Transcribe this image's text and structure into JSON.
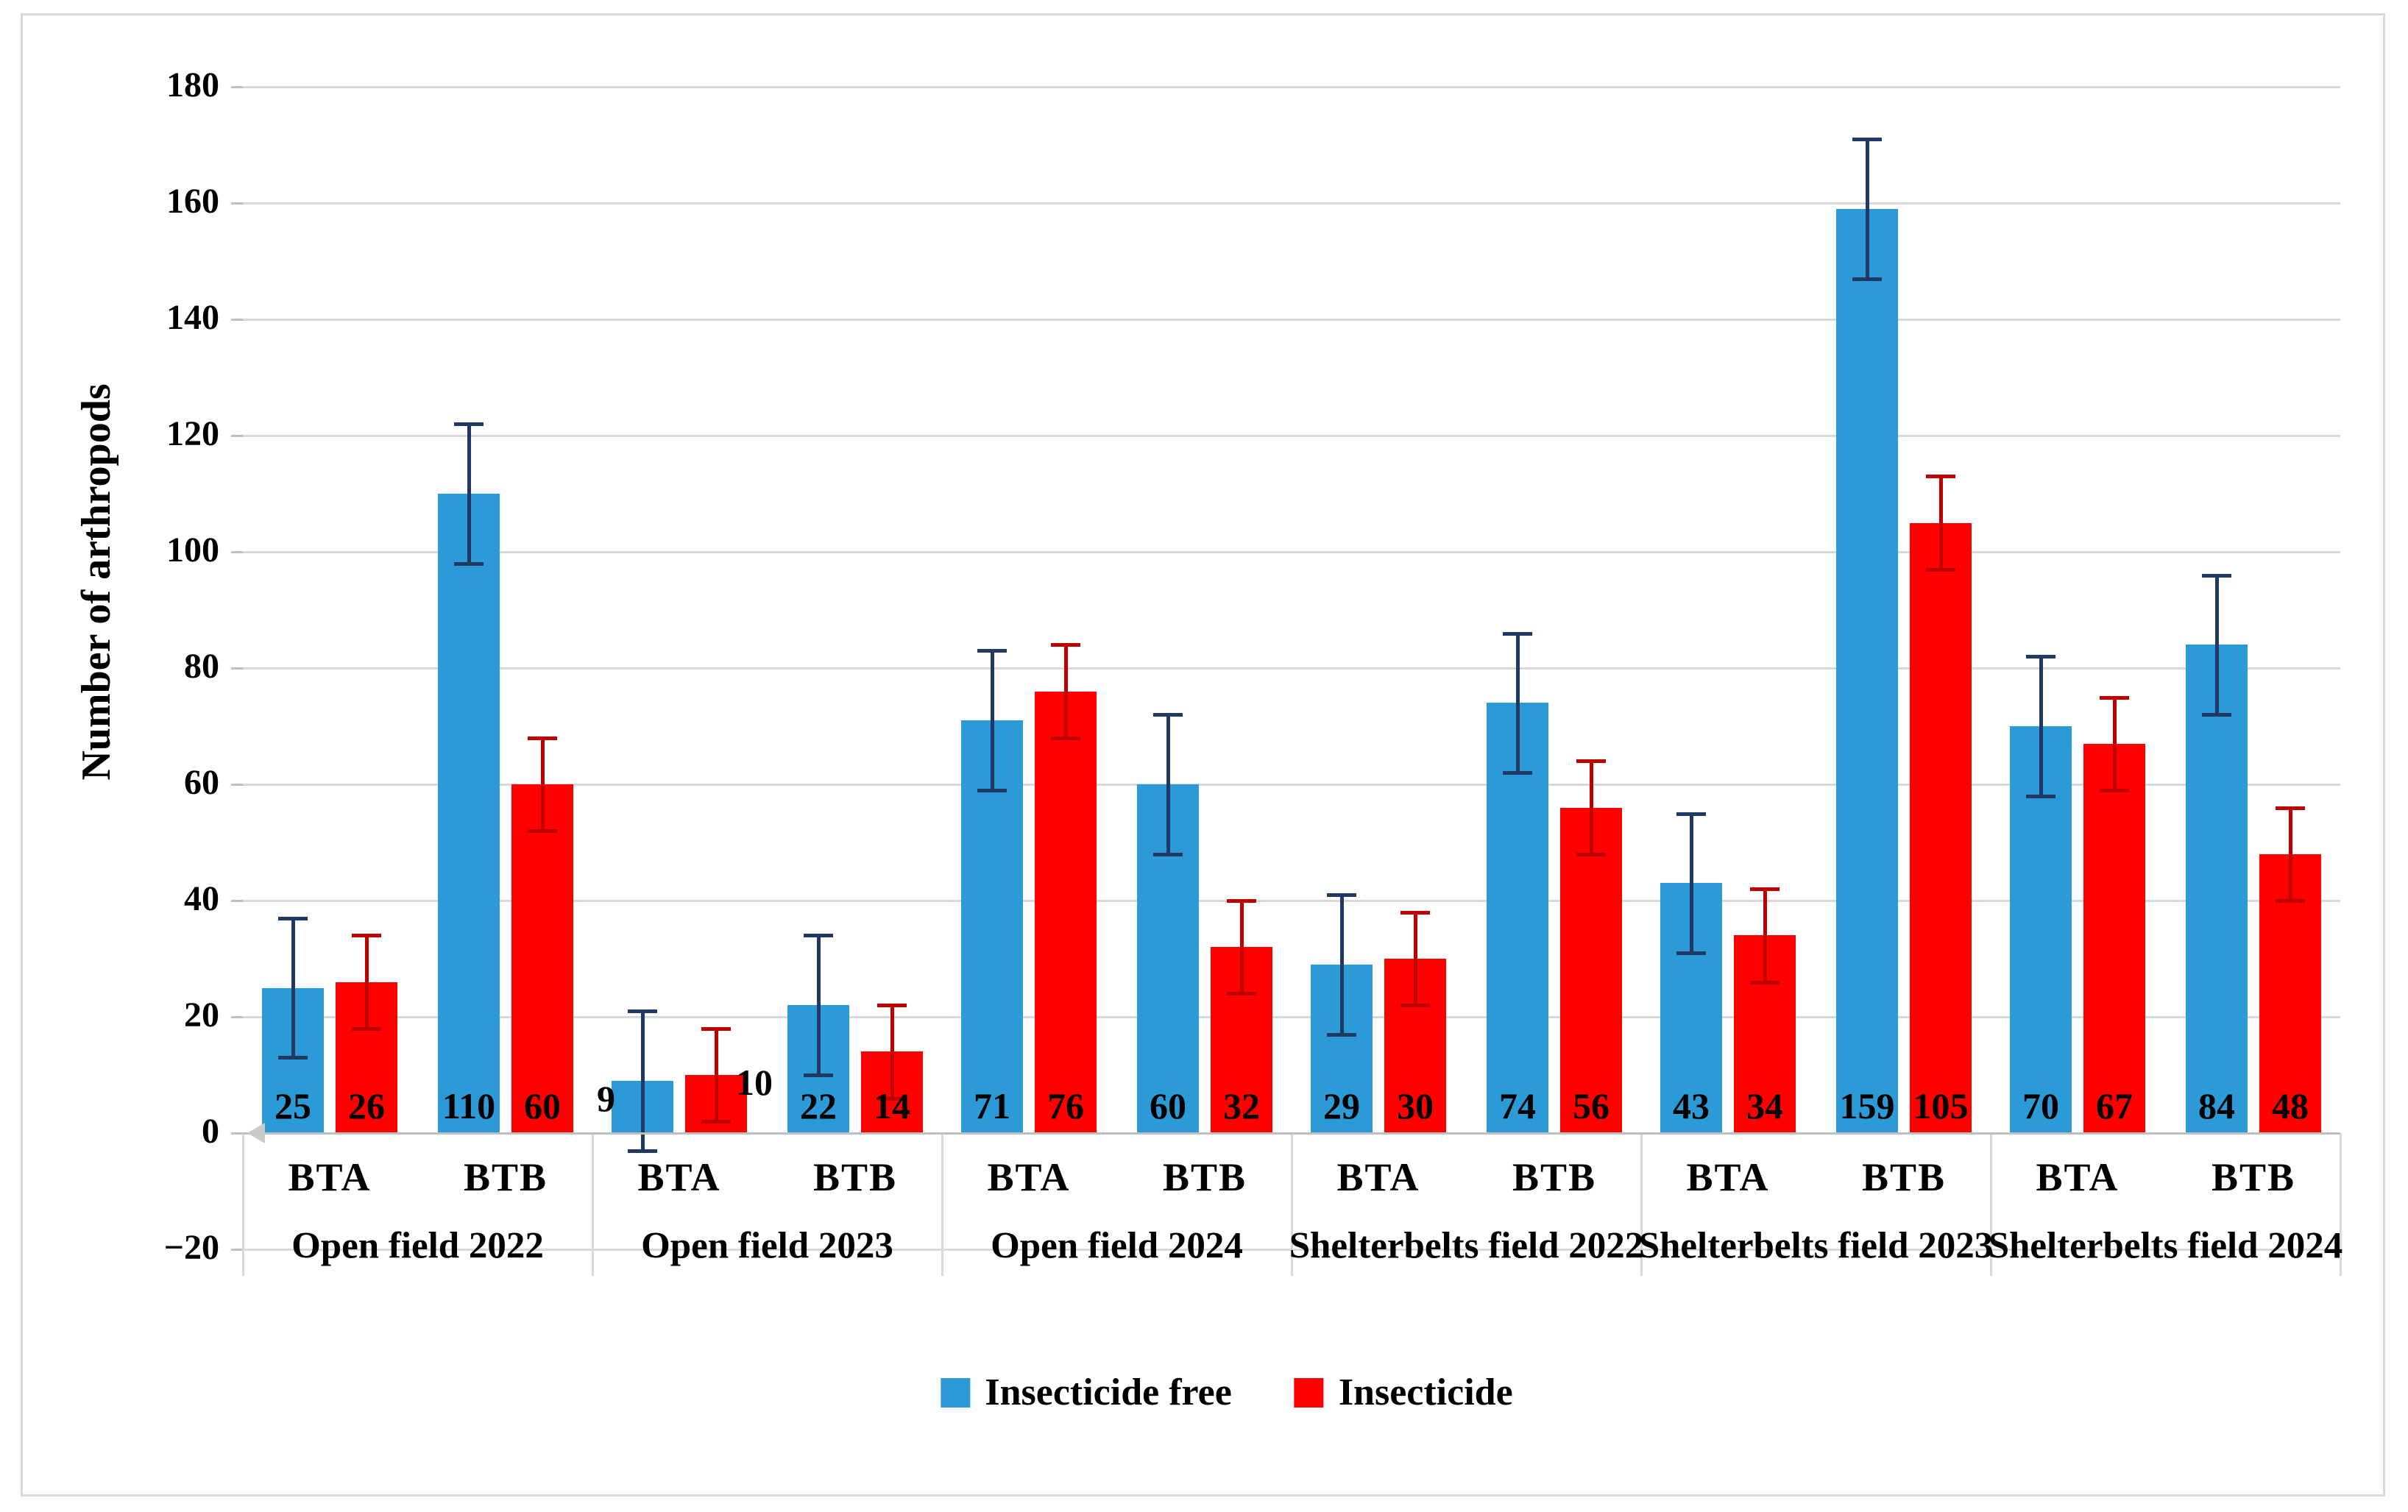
{
  "figure": {
    "background_color": "#FFFFFF",
    "border_color": "#D9D9D9"
  },
  "style": {
    "gridline_color": "#D9D9D9",
    "axis_line_color": "#BFBFBF",
    "text_color": "#000000"
  },
  "chart_data": {
    "type": "bar",
    "title": "",
    "ylabel": "Number of arthropods",
    "xlabel": "",
    "ylim": [
      -20,
      180
    ],
    "ytick_step": 20,
    "grid": true,
    "legend_position": "bottom-center",
    "categories": [
      "Open field 2022",
      "Open field 2023",
      "Open field 2024",
      "Shelterbelts field 2022",
      "Shelterbelts field 2023",
      "Shelterbelts field 2024"
    ],
    "subcategories": [
      "BTA",
      "BTB"
    ],
    "series": [
      {
        "name": "Insecticide free",
        "color": "#2B9AD6",
        "error_color": "#1F3864",
        "error": 12,
        "values": [
          [
            25,
            110
          ],
          [
            9,
            22
          ],
          [
            71,
            60
          ],
          [
            29,
            74
          ],
          [
            43,
            159
          ],
          [
            70,
            84
          ]
        ]
      },
      {
        "name": "Insecticide",
        "color": "#FE0000",
        "error_color": "#C00000",
        "error": 8,
        "values": [
          [
            26,
            60
          ],
          [
            10,
            14
          ],
          [
            76,
            32
          ],
          [
            30,
            56
          ],
          [
            34,
            105
          ],
          [
            67,
            48
          ]
        ]
      }
    ],
    "bar_value_labels": [
      [
        25,
        26,
        110,
        60
      ],
      [
        9,
        10,
        22,
        14
      ],
      [
        71,
        76,
        60,
        32
      ],
      [
        29,
        30,
        74,
        56
      ],
      [
        43,
        34,
        159,
        105
      ],
      [
        70,
        67,
        84,
        48
      ]
    ],
    "label_overrides": [
      {
        "category_index": 1,
        "subcategory_index": 0,
        "series_index": 0,
        "pos": "outside-left"
      },
      {
        "category_index": 1,
        "subcategory_index": 0,
        "series_index": 1,
        "pos": "outside-right"
      }
    ]
  }
}
